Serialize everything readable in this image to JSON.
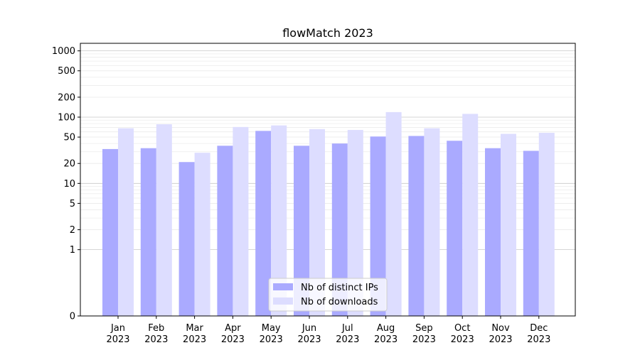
{
  "chart_data": {
    "type": "bar",
    "title": "flowMatch 2023",
    "xlabel": "",
    "ylabel": "",
    "yscale": "symlog",
    "ylim": [
      0,
      1300
    ],
    "yticks": [
      0,
      1,
      2,
      5,
      10,
      20,
      50,
      100,
      200,
      500,
      1000
    ],
    "ytick_labels": [
      "0",
      "1",
      "2",
      "5",
      "10",
      "20",
      "50",
      "100",
      "200",
      "500",
      "1000"
    ],
    "grid": true,
    "legend_position": "bottom-center",
    "categories": [
      [
        "Jan",
        "2023"
      ],
      [
        "Feb",
        "2023"
      ],
      [
        "Mar",
        "2023"
      ],
      [
        "Apr",
        "2023"
      ],
      [
        "May",
        "2023"
      ],
      [
        "Jun",
        "2023"
      ],
      [
        "Jul",
        "2023"
      ],
      [
        "Aug",
        "2023"
      ],
      [
        "Sep",
        "2023"
      ],
      [
        "Oct",
        "2023"
      ],
      [
        "Nov",
        "2023"
      ],
      [
        "Dec",
        "2023"
      ]
    ],
    "series": [
      {
        "name": "Nb of distinct IPs",
        "color": "#aaaaff",
        "values": [
          33,
          34,
          21,
          37,
          62,
          37,
          40,
          51,
          52,
          44,
          34,
          31
        ]
      },
      {
        "name": "Nb of downloads",
        "color": "#ddddff",
        "values": [
          68,
          78,
          29,
          71,
          75,
          66,
          64,
          119,
          68,
          112,
          56,
          58
        ]
      }
    ]
  }
}
